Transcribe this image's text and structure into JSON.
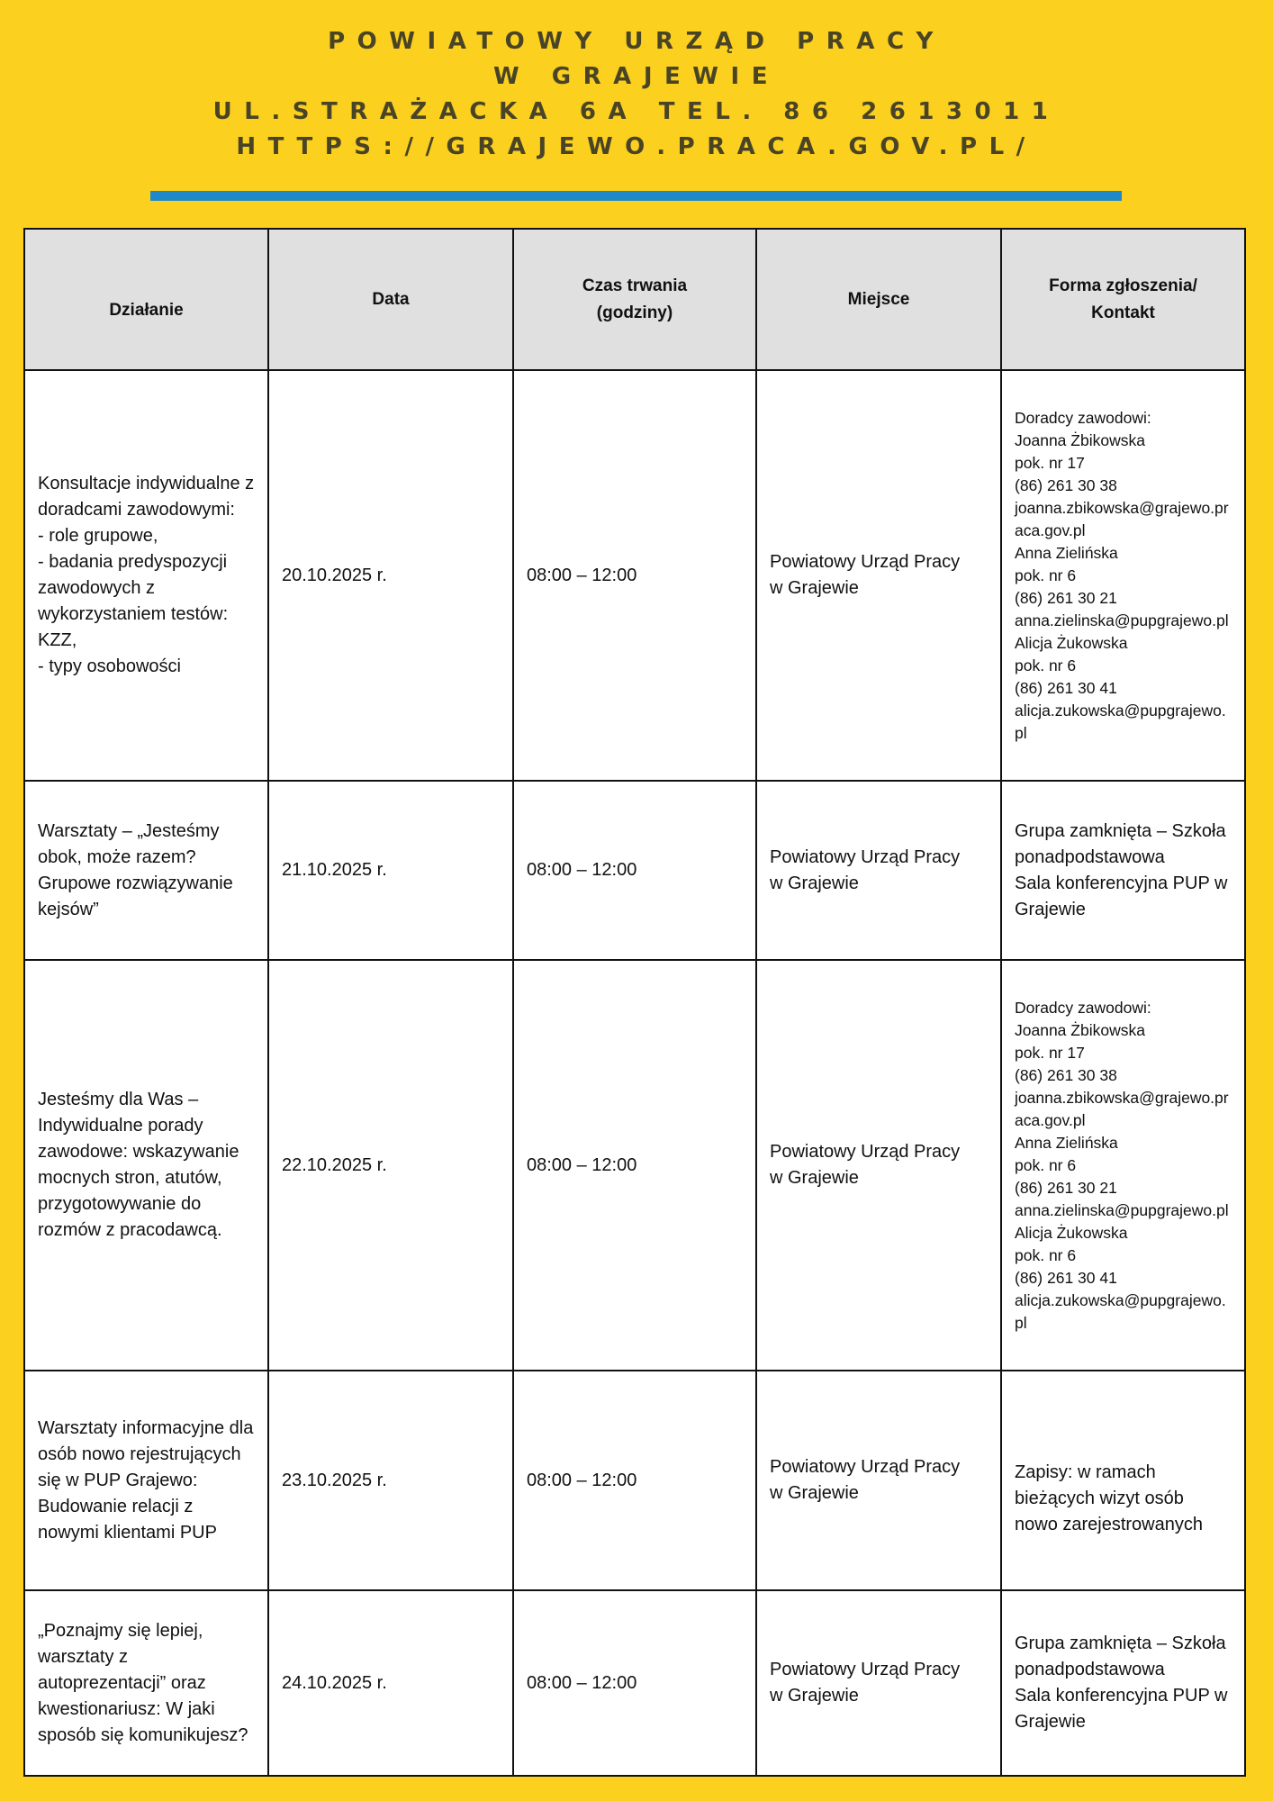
{
  "header": {
    "line1": "POWIATOWY URZĄD PRACY",
    "line2": "W GRAJEWIE",
    "line3": "UL.STRAŻACKA 6A TEL. 86 2613011",
    "line4": "HTTPS://GRAJEWO.PRACA.GOV.PL/"
  },
  "colors": {
    "background": "#FBD01E",
    "accent_bar": "#1E88C8",
    "header_cell": "#E0E0E0"
  },
  "table": {
    "columns": [
      "Działanie",
      "Data",
      "Czas trwania\n(godziny)",
      "Miejsce",
      "Forma zgłoszenia/\nKontakt"
    ],
    "rows": [
      {
        "dzialanie": "Konsultacje indywidualne z doradcami zawodowymi:\n- role grupowe,\n- badania predyspozycji zawodowych z wykorzystaniem testów: KZZ,\n - typy osobowości",
        "data": "20.10.2025 r.",
        "czas": "08:00 – 12:00",
        "miejsce": "Powiatowy Urząd Pracy\n w Grajewie",
        "kontakt": "Doradcy zawodowi:\nJoanna Żbikowska\npok. nr 17\n(86) 261 30 38\njoanna.zbikowska@grajewo.praca.gov.pl\nAnna Zielińska\npok. nr 6\n(86) 261 30 21\nanna.zielinska@pupgrajewo.pl\nAlicja Żukowska\npok. nr 6\n(86) 261 30 41\nalicja.zukowska@pupgrajewo.pl"
      },
      {
        "dzialanie": "Warsztaty – „Jesteśmy obok, może razem? Grupowe rozwiązywanie kejsów”",
        "data": "21.10.2025 r.",
        "czas": "08:00 – 12:00",
        "miejsce": "Powiatowy Urząd Pracy\n w Grajewie",
        "kontakt": "Grupa zamknięta – Szkoła ponadpodstawowa\nSala konferencyjna PUP w Grajewie"
      },
      {
        "dzialanie": "Jesteśmy dla Was – Indywidualne porady zawodowe: wskazywanie mocnych stron, atutów, przygotowywanie do rozmów z pracodawcą.",
        "data": "22.10.2025 r.",
        "czas": "08:00 – 12:00",
        "miejsce": "Powiatowy Urząd Pracy\n w Grajewie",
        "kontakt": "Doradcy zawodowi:\nJoanna Żbikowska\npok. nr 17\n(86) 261 30 38\njoanna.zbikowska@grajewo.praca.gov.pl\nAnna Zielińska\npok. nr 6\n(86) 261 30 21\nanna.zielinska@pupgrajewo.pl\nAlicja Żukowska\npok. nr 6\n(86) 261 30 41\nalicja.zukowska@pupgrajewo.pl"
      },
      {
        "dzialanie": "Warsztaty informacyjne dla osób nowo rejestrujących się w PUP Grajewo:\nBudowanie relacji z nowymi klientami PUP",
        "data": "23.10.2025 r.",
        "czas": "08:00 – 12:00",
        "miejsce": "Powiatowy Urząd Pracy\n w Grajewie",
        "kontakt": "Zapisy: w ramach bieżących wizyt osób nowo zarejestrowanych"
      },
      {
        "dzialanie": " „Poznajmy się lepiej, warsztaty z autoprezentacji” oraz kwestionariusz: W jaki sposób się komunikujesz?",
        "data": "24.10.2025 r.",
        "czas": "08:00 – 12:00",
        "miejsce": "Powiatowy Urząd Pracy\n w Grajewie",
        "kontakt": "Grupa zamknięta – Szkoła ponadpodstawowa\nSala konferencyjna PUP w Grajewie"
      }
    ]
  }
}
